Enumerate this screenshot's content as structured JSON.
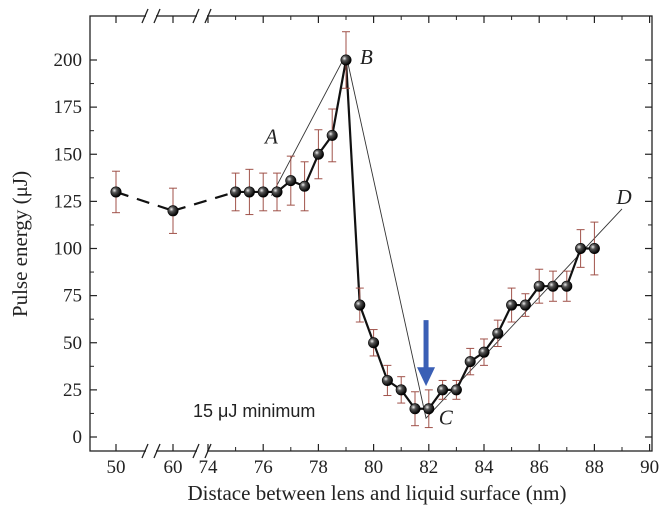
{
  "chart_data": {
    "type": "scatter",
    "title": "",
    "xlabel": "Distace between lens and liquid surface  (nm)",
    "ylabel": "Pulse energy  (μJ)",
    "ylim": [
      0,
      220
    ],
    "x_ticks": [
      "50",
      "60",
      "74",
      "76",
      "78",
      "80",
      "82",
      "84",
      "86",
      "88",
      "90"
    ],
    "y_ticks": [
      "0",
      "25",
      "50",
      "75",
      "100",
      "125",
      "150",
      "175",
      "200"
    ],
    "x_axis_breaks": [
      "50-60",
      "60-74"
    ],
    "grid": false,
    "legend": "none",
    "series": [
      {
        "points": [
          {
            "x": 50,
            "y": 130,
            "err": 11
          },
          {
            "x": 60,
            "y": 120,
            "err": 12
          },
          {
            "x": 75,
            "y": 130,
            "err": 10
          },
          {
            "x": 75.5,
            "y": 130,
            "err": 12
          },
          {
            "x": 76,
            "y": 130,
            "err": 10
          },
          {
            "x": 76.5,
            "y": 130,
            "err": 10
          },
          {
            "x": 77,
            "y": 136,
            "err": 13
          },
          {
            "x": 77.5,
            "y": 133,
            "err": 13
          },
          {
            "x": 78,
            "y": 150,
            "err": 13
          },
          {
            "x": 78.5,
            "y": 160,
            "err": 14
          },
          {
            "x": 79,
            "y": 200,
            "err": 15
          },
          {
            "x": 79.5,
            "y": 70,
            "err": 9
          },
          {
            "x": 80,
            "y": 50,
            "err": 7
          },
          {
            "x": 80.5,
            "y": 30,
            "err": 8
          },
          {
            "x": 81,
            "y": 25,
            "err": 7
          },
          {
            "x": 81.5,
            "y": 15,
            "err": 9
          },
          {
            "x": 82,
            "y": 15,
            "err": 10
          },
          {
            "x": 82.5,
            "y": 25,
            "err": 5
          },
          {
            "x": 83,
            "y": 25,
            "err": 5
          },
          {
            "x": 83.5,
            "y": 40,
            "err": 7
          },
          {
            "x": 84,
            "y": 45,
            "err": 7
          },
          {
            "x": 84.5,
            "y": 55,
            "err": 7
          },
          {
            "x": 85,
            "y": 70,
            "err": 9
          },
          {
            "x": 85.5,
            "y": 70,
            "err": 6
          },
          {
            "x": 86,
            "y": 80,
            "err": 9
          },
          {
            "x": 86.5,
            "y": 80,
            "err": 8
          },
          {
            "x": 87,
            "y": 80,
            "err": 8
          },
          {
            "x": 87.5,
            "y": 100,
            "err": 10
          },
          {
            "x": 88,
            "y": 100,
            "err": 14
          }
        ]
      }
    ],
    "annotations": {
      "A": {
        "label": "A",
        "x": 76.5,
        "y": 128
      },
      "B": {
        "label": "B",
        "x": 79,
        "y": 200
      },
      "C": {
        "label": "C",
        "x": 82,
        "y": 15
      },
      "D": {
        "label": "D",
        "x": 88.8,
        "y": 120
      },
      "minimum_note": "15 μJ minimum",
      "arrow_x": 81.9,
      "arrow_color": "#3a5fb5"
    }
  }
}
